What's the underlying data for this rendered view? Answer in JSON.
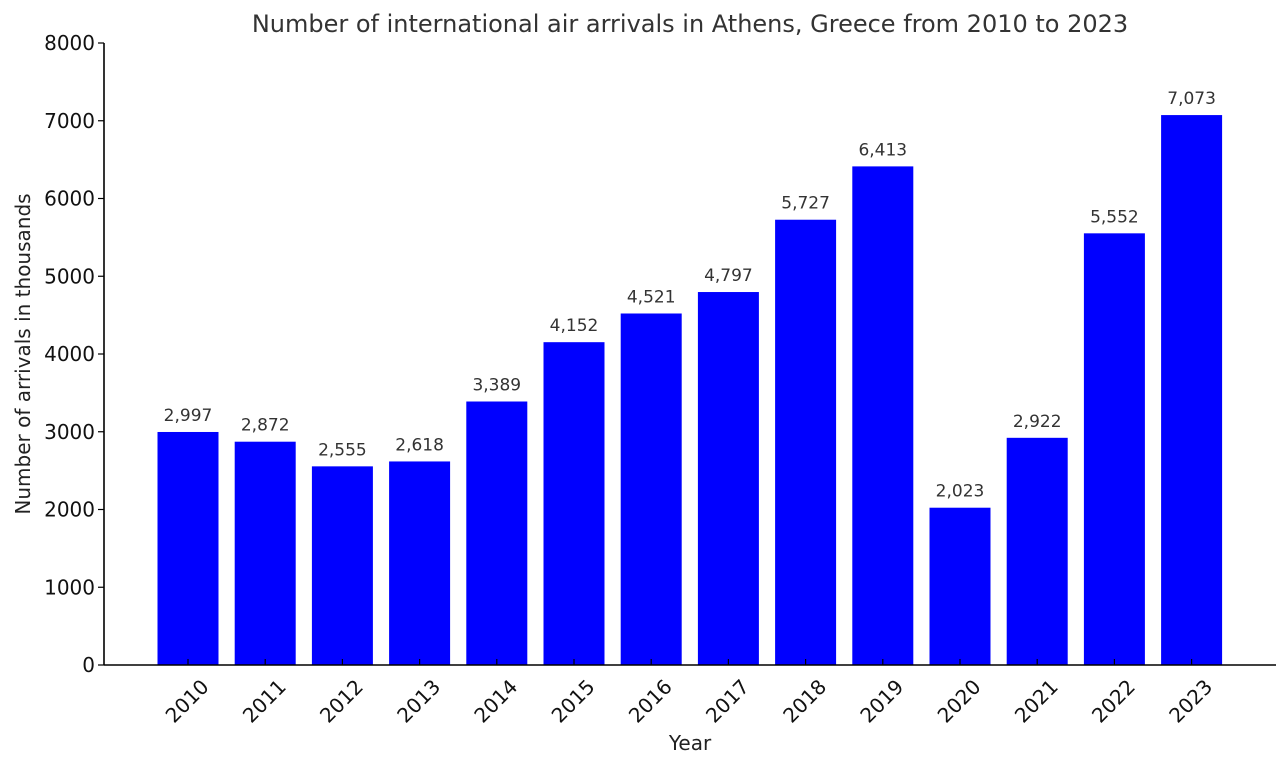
{
  "chart_data": {
    "type": "bar",
    "title": "Number of international air arrivals in Athens, Greece from 2010 to 2023",
    "xlabel": "Year",
    "ylabel": "Number of arrivals in thousands",
    "categories": [
      "2010",
      "2011",
      "2012",
      "2013",
      "2014",
      "2015",
      "2016",
      "2017",
      "2018",
      "2019",
      "2020",
      "2021",
      "2022",
      "2023"
    ],
    "values": [
      2997,
      2872,
      2555,
      2618,
      3389,
      4152,
      4521,
      4797,
      5727,
      6413,
      2023,
      2922,
      5552,
      7073
    ],
    "value_labels": [
      "2,997",
      "2,872",
      "2,555",
      "2,618",
      "3,389",
      "4,152",
      "4,521",
      "4,797",
      "5,727",
      "6,413",
      "2,023",
      "2,922",
      "5,552",
      "7,073"
    ],
    "ylim": [
      0,
      8000
    ],
    "yticks": [
      "0",
      "1000",
      "2000",
      "3000",
      "4000",
      "5000",
      "6000",
      "7000",
      "8000"
    ],
    "bar_color": "#0000ff",
    "grid": false,
    "legend": "none"
  }
}
